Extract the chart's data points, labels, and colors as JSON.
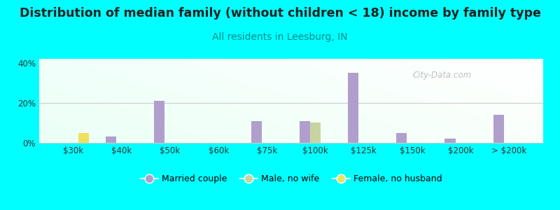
{
  "title": "Distribution of median family (without children < 18) income by family type",
  "subtitle": "All residents in Leesburg, IN",
  "title_fontsize": 12.5,
  "subtitle_fontsize": 10,
  "subtitle_color": "#008b8b",
  "background_color": "#00ffff",
  "categories": [
    "$30k",
    "$40k",
    "$50k",
    "$60k",
    "$75k",
    "$100k",
    "$125k",
    "$150k",
    "$200k",
    "> $200k"
  ],
  "married_couple": [
    0,
    3,
    21,
    0,
    11,
    11,
    35,
    5,
    2,
    14
  ],
  "male_no_wife": [
    0,
    0,
    0,
    0,
    0,
    10,
    0,
    0,
    0,
    0
  ],
  "female_no_husb": [
    5,
    0,
    0,
    0,
    0,
    0,
    0,
    0,
    0,
    0
  ],
  "married_color": "#b09fcc",
  "male_color": "#c8d4a0",
  "female_color": "#f0e060",
  "bar_width": 0.22,
  "ylim": [
    0,
    42
  ],
  "yticks": [
    0,
    20,
    40
  ],
  "ytick_labels": [
    "0%",
    "20%",
    "40%"
  ],
  "watermark": "City-Data.com",
  "legend_labels": [
    "Married couple",
    "Male, no wife",
    "Female, no husband"
  ]
}
